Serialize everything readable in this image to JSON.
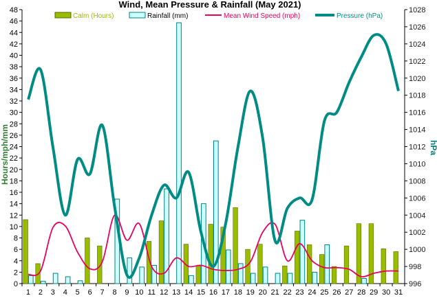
{
  "chart_data": {
    "type": "bar",
    "title": "Wind, Mean Pressure & Rainfall (May 2021)",
    "ylabel": "Hours/mph/mm",
    "y2label": "hPa",
    "categories": [
      "1",
      "2",
      "3",
      "4",
      "5",
      "6",
      "7",
      "8",
      "9",
      "10",
      "11",
      "12",
      "13",
      "14",
      "15",
      "16",
      "17",
      "18",
      "19",
      "20",
      "21",
      "22",
      "23",
      "24",
      "25",
      "26",
      "27",
      "28",
      "29",
      "30",
      "31"
    ],
    "ylim": [
      0,
      48
    ],
    "y2lim": [
      996,
      1028
    ],
    "yticks": [
      0,
      2,
      4,
      6,
      8,
      10,
      12,
      14,
      16,
      18,
      20,
      22,
      24,
      26,
      28,
      30,
      32,
      34,
      36,
      38,
      40,
      42,
      44,
      46,
      48
    ],
    "y2ticks": [
      996,
      998,
      1000,
      1002,
      1004,
      1006,
      1008,
      1010,
      1012,
      1014,
      1016,
      1018,
      1020,
      1022,
      1024,
      1026,
      1028
    ],
    "legend_position": "top",
    "series": [
      {
        "name": "Calm (Hours)",
        "kind": "bar",
        "axis": "left",
        "color": "#99bb00",
        "edge": "#556b00",
        "values": [
          11.2,
          3.5,
          0,
          0,
          0,
          8.0,
          6.6,
          0,
          0,
          0,
          7.4,
          11.0,
          0,
          6.9,
          3.1,
          10.4,
          9.9,
          13.3,
          6.0,
          6.9,
          0,
          3.1,
          9.2,
          6.8,
          5.1,
          3.0,
          6.6,
          10.5,
          10.5,
          6.1,
          5.6
        ]
      },
      {
        "name": "Rainfall (mm)",
        "kind": "bar",
        "axis": "left",
        "color": "#ccffff",
        "edge": "#008080",
        "values": [
          1.4,
          0.4,
          1.8,
          1.2,
          0.5,
          0,
          0,
          14.8,
          4.5,
          2.9,
          3.2,
          16.6,
          45.7,
          1.4,
          14.0,
          25.0,
          5.9,
          3.5,
          1.8,
          2.9,
          1.8,
          1.8,
          11.1,
          2.0,
          6.8,
          0,
          0,
          0.9,
          0,
          0,
          0
        ]
      },
      {
        "name": "Mean Wind Speed (mph)",
        "kind": "line",
        "axis": "left",
        "color": "#e8005a",
        "values": [
          1.6,
          2.2,
          9.8,
          10.1,
          5.5,
          2.6,
          3.8,
          12.0,
          7.6,
          10.5,
          3.0,
          1.8,
          4.5,
          3.0,
          3.2,
          2.5,
          2.3,
          2.5,
          3.8,
          9.0,
          10.4,
          4.0,
          7.0,
          4.0,
          2.8,
          2.8,
          2.5,
          1.2,
          1.8,
          2.2,
          2.2
        ]
      },
      {
        "name": "Pressure (hPa)",
        "kind": "line",
        "axis": "right",
        "color": "#008b85",
        "values": [
          1017.5,
          1021.0,
          1012.0,
          1004.0,
          1010.5,
          1008.8,
          1014.5,
          1005.0,
          997.0,
          999.0,
          1004.0,
          1007.5,
          1006.0,
          1009.0,
          1002.0,
          998.0,
          1003.0,
          1012.0,
          1018.5,
          1013.0,
          1001.0,
          1004.8,
          1006.0,
          1005.8,
          1015.0,
          1016.0,
          1019.5,
          1022.5,
          1025.0,
          1024.0,
          1018.5
        ]
      }
    ]
  }
}
